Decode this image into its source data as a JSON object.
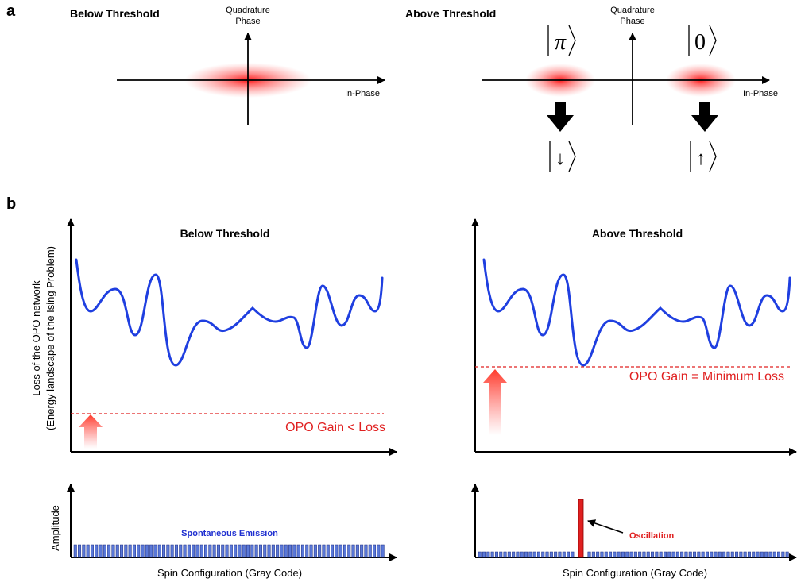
{
  "panel_a": {
    "label": "a",
    "below": {
      "title": "Below Threshold",
      "quadrature_line1": "Quadrature",
      "quadrature_line2": "Phase",
      "in_phase": "In-Phase"
    },
    "above": {
      "title": "Above Threshold",
      "quadrature_line1": "Quadrature",
      "quadrature_line2": "Phase",
      "in_phase": "In-Phase",
      "left_state": "π",
      "right_state": "0",
      "left_spin": "↓",
      "right_spin": "↑"
    }
  },
  "panel_b": {
    "label": "b",
    "y_label_line1": "Loss of the OPO network",
    "y_label_line2": "(Energy landscape of the Ising Problem)",
    "below": {
      "title": "Below Threshold",
      "gain_label": "OPO Gain < Loss",
      "amplitude_label": "Amplitude",
      "emission_label": "Spontaneous Emission",
      "x_label": "Spin Configuration (Gray Code)"
    },
    "above": {
      "title": "Above Threshold",
      "gain_label": "OPO Gain = Minimum Loss",
      "oscillation_label": "Oscillation",
      "x_label": "Spin Configuration (Gray Code)"
    }
  },
  "colors": {
    "curve": "#1f3fe0",
    "gain_line": "#e02020",
    "bar_fill": "#5a78d8",
    "oscillation_bar": "#e02020",
    "label_red": "#e02020",
    "label_blue": "#1f2fd0"
  }
}
